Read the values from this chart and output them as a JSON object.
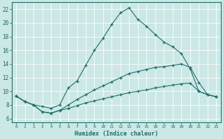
{
  "xlabel": "Humidex (Indice chaleur)",
  "ylabel": "",
  "bg_color": "#cce8e6",
  "line_color": "#1a6e65",
  "grid_color": "#ffffff",
  "xlim": [
    -0.5,
    23.5
  ],
  "ylim": [
    5.5,
    23.0
  ],
  "xticks": [
    0,
    1,
    2,
    3,
    4,
    5,
    6,
    7,
    8,
    9,
    10,
    11,
    12,
    13,
    14,
    15,
    16,
    17,
    18,
    19,
    20,
    21,
    22,
    23
  ],
  "yticks": [
    6,
    8,
    10,
    12,
    14,
    16,
    18,
    20,
    22
  ],
  "line1_x": [
    0,
    1,
    2,
    3,
    4,
    5,
    6,
    7,
    8,
    9,
    10,
    11,
    12,
    13,
    14,
    15,
    16,
    17,
    18,
    19,
    20,
    21,
    22,
    23
  ],
  "line1_y": [
    9.3,
    8.5,
    8.0,
    7.8,
    7.5,
    8.0,
    10.5,
    11.5,
    13.8,
    16.0,
    17.8,
    19.8,
    21.5,
    22.2,
    20.5,
    19.5,
    18.3,
    17.2,
    16.5,
    15.5,
    13.3,
    10.0,
    9.5,
    9.2
  ],
  "line2_x": [
    0,
    1,
    2,
    3,
    4,
    5,
    6,
    7,
    8,
    9,
    10,
    11,
    12,
    13,
    14,
    15,
    16,
    17,
    18,
    19,
    20,
    21,
    22,
    23
  ],
  "line2_y": [
    9.3,
    8.5,
    8.0,
    7.0,
    6.8,
    7.2,
    8.0,
    8.8,
    9.5,
    10.2,
    10.8,
    11.4,
    12.0,
    12.6,
    12.9,
    13.2,
    13.5,
    13.6,
    13.8,
    14.0,
    13.5,
    11.3,
    9.5,
    9.2
  ],
  "line3_x": [
    0,
    1,
    2,
    3,
    4,
    5,
    6,
    7,
    8,
    9,
    10,
    11,
    12,
    13,
    14,
    15,
    16,
    17,
    18,
    19,
    20,
    21,
    22,
    23
  ],
  "line3_y": [
    9.3,
    8.5,
    8.0,
    7.0,
    6.8,
    7.2,
    7.5,
    7.9,
    8.3,
    8.6,
    8.9,
    9.2,
    9.5,
    9.8,
    10.0,
    10.2,
    10.5,
    10.7,
    10.9,
    11.1,
    11.2,
    10.0,
    9.5,
    9.2
  ]
}
